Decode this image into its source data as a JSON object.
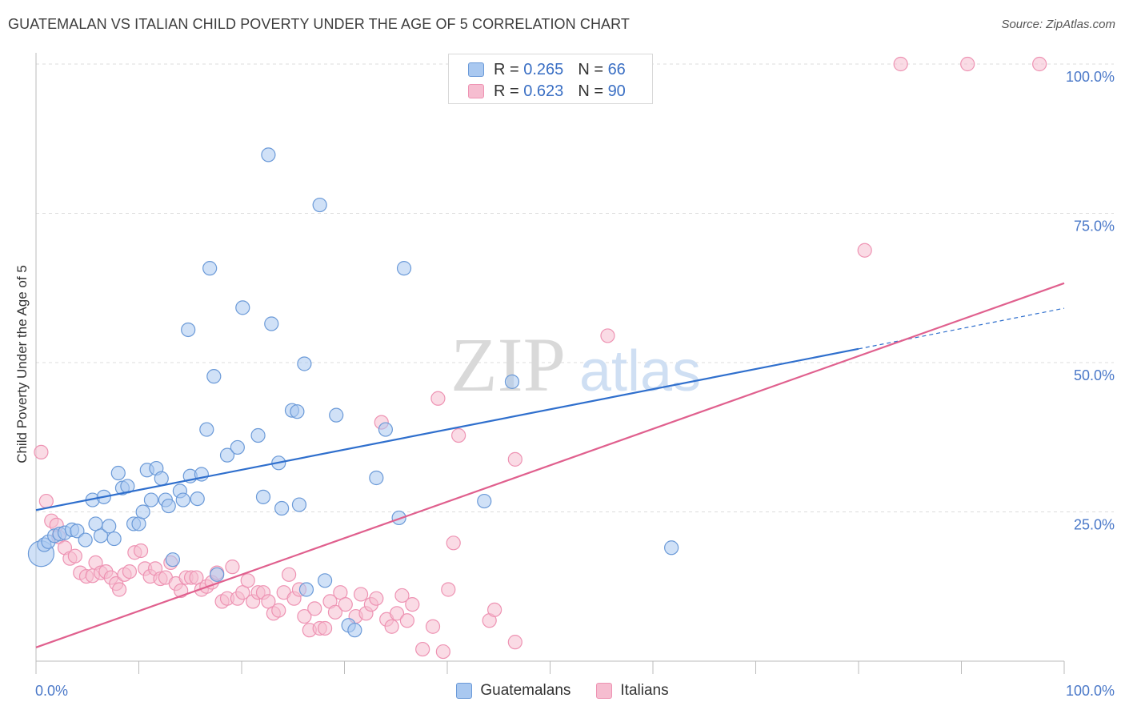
{
  "title": "GUATEMALAN VS ITALIAN CHILD POVERTY UNDER THE AGE OF 5 CORRELATION CHART",
  "source": "Source: ZipAtlas.com",
  "watermark": {
    "zip": "ZIP",
    "atlas": "atlas"
  },
  "legend_top": [
    {
      "r_label": "R =",
      "r_value": "0.265",
      "n_label": "N =",
      "n_value": "66"
    },
    {
      "r_label": "R =",
      "r_value": "0.623",
      "n_label": "N =",
      "n_value": "90"
    }
  ],
  "colors": {
    "blue_fill": "#a9c8f0",
    "blue_stroke": "#6b9ad8",
    "blue_line": "#2f6fcd",
    "pink_fill": "#f6bdd0",
    "pink_stroke": "#ee93b3",
    "pink_line": "#e0608e",
    "axis_label": "#4a78c8",
    "grid": "#dcdcdc"
  },
  "chart_data": {
    "type": "scatter",
    "title": "GUATEMALAN VS ITALIAN CHILD POVERTY UNDER THE AGE OF 5 CORRELATION CHART",
    "xlabel": "",
    "ylabel": "Child Poverty Under the Age of 5",
    "xlim": [
      0,
      100
    ],
    "ylim": [
      0,
      100
    ],
    "x_tick_labels": [
      "0.0%",
      "100.0%"
    ],
    "y_tick_labels": [
      "25.0%",
      "50.0%",
      "75.0%",
      "100.0%"
    ],
    "y_ticks": [
      25,
      50,
      75,
      100
    ],
    "grid": true,
    "legend_position": "top-center",
    "series": [
      {
        "name": "Guatemalans",
        "r": 0.265,
        "n": 66,
        "trend": {
          "x0": 0,
          "y0": 25.3,
          "x1": 80,
          "y1": 52.3,
          "x_dash_end": 100,
          "y_dash_end": 59.1
        },
        "points": [
          [
            0.5,
            18
          ],
          [
            0.8,
            19.5
          ],
          [
            1.2,
            20
          ],
          [
            1.8,
            21
          ],
          [
            2.3,
            21.3
          ],
          [
            2.8,
            21.5
          ],
          [
            3.5,
            22
          ],
          [
            4.0,
            21.8
          ],
          [
            4.8,
            20.3
          ],
          [
            5.5,
            27
          ],
          [
            5.8,
            23
          ],
          [
            6.3,
            21
          ],
          [
            6.6,
            27.5
          ],
          [
            7.1,
            22.6
          ],
          [
            7.6,
            20.5
          ],
          [
            8.0,
            31.5
          ],
          [
            8.4,
            29
          ],
          [
            8.9,
            29.3
          ],
          [
            9.5,
            23
          ],
          [
            10.0,
            23
          ],
          [
            10.4,
            25
          ],
          [
            10.8,
            32
          ],
          [
            11.2,
            27
          ],
          [
            11.7,
            32.3
          ],
          [
            12.2,
            30.6
          ],
          [
            12.6,
            27
          ],
          [
            12.9,
            26
          ],
          [
            13.3,
            17
          ],
          [
            14.0,
            28.5
          ],
          [
            14.3,
            27
          ],
          [
            14.8,
            55.5
          ],
          [
            15.0,
            31
          ],
          [
            15.7,
            27.2
          ],
          [
            16.1,
            31.3
          ],
          [
            16.6,
            38.8
          ],
          [
            16.9,
            65.8
          ],
          [
            17.3,
            47.7
          ],
          [
            17.6,
            14.5
          ],
          [
            18.6,
            34.5
          ],
          [
            19.6,
            35.8
          ],
          [
            20.1,
            59.2
          ],
          [
            21.6,
            37.8
          ],
          [
            22.1,
            27.5
          ],
          [
            22.6,
            84.8
          ],
          [
            22.9,
            56.5
          ],
          [
            23.6,
            33.2
          ],
          [
            23.9,
            25.6
          ],
          [
            24.9,
            42
          ],
          [
            25.4,
            41.8
          ],
          [
            25.6,
            26.2
          ],
          [
            26.1,
            49.8
          ],
          [
            26.3,
            12
          ],
          [
            27.6,
            76.4
          ],
          [
            28.1,
            13.5
          ],
          [
            29.2,
            41.2
          ],
          [
            30.4,
            6
          ],
          [
            31.0,
            5.2
          ],
          [
            33.1,
            30.7
          ],
          [
            34.0,
            38.8
          ],
          [
            35.3,
            24
          ],
          [
            35.8,
            65.8
          ],
          [
            43.6,
            26.8
          ],
          [
            46.3,
            46.8
          ],
          [
            61.8,
            19
          ]
        ]
      },
      {
        "name": "Italians",
        "r": 0.623,
        "n": 90,
        "trend": {
          "x0": 0,
          "y0": 2.3,
          "x1": 100,
          "y1": 63.3
        },
        "points": [
          [
            0.5,
            35
          ],
          [
            1.0,
            26.8
          ],
          [
            1.5,
            23.5
          ],
          [
            2.0,
            22.8
          ],
          [
            2.2,
            20.8
          ],
          [
            2.8,
            19
          ],
          [
            3.3,
            17.2
          ],
          [
            3.8,
            17.6
          ],
          [
            4.3,
            14.8
          ],
          [
            4.9,
            14.2
          ],
          [
            5.5,
            14.3
          ],
          [
            5.8,
            16.5
          ],
          [
            6.3,
            14.8
          ],
          [
            6.8,
            15
          ],
          [
            7.3,
            14
          ],
          [
            7.8,
            13
          ],
          [
            8.1,
            12
          ],
          [
            8.6,
            14.5
          ],
          [
            9.1,
            15
          ],
          [
            9.6,
            18.2
          ],
          [
            10.2,
            18.5
          ],
          [
            10.6,
            15.5
          ],
          [
            11.1,
            14.2
          ],
          [
            11.6,
            15.5
          ],
          [
            12.1,
            13.8
          ],
          [
            12.6,
            14
          ],
          [
            13.1,
            16.5
          ],
          [
            13.6,
            13
          ],
          [
            14.1,
            11.8
          ],
          [
            14.6,
            14
          ],
          [
            15.1,
            14
          ],
          [
            15.6,
            14
          ],
          [
            16.1,
            12
          ],
          [
            16.6,
            12.5
          ],
          [
            17.1,
            13.2
          ],
          [
            17.6,
            14.8
          ],
          [
            18.1,
            10
          ],
          [
            18.6,
            10.5
          ],
          [
            19.1,
            15.8
          ],
          [
            19.6,
            10.5
          ],
          [
            20.1,
            11.5
          ],
          [
            20.6,
            13.5
          ],
          [
            21.1,
            10
          ],
          [
            21.6,
            11.5
          ],
          [
            22.1,
            11.5
          ],
          [
            22.6,
            10
          ],
          [
            23.1,
            8
          ],
          [
            23.6,
            8.5
          ],
          [
            24.1,
            11.5
          ],
          [
            24.6,
            14.5
          ],
          [
            25.1,
            10.5
          ],
          [
            25.6,
            12
          ],
          [
            26.1,
            7.5
          ],
          [
            26.6,
            5.2
          ],
          [
            27.1,
            8.8
          ],
          [
            27.6,
            5.5
          ],
          [
            28.1,
            5.5
          ],
          [
            28.6,
            10
          ],
          [
            29.1,
            8.2
          ],
          [
            29.6,
            11.5
          ],
          [
            30.1,
            9.5
          ],
          [
            31.1,
            7.5
          ],
          [
            31.6,
            11.2
          ],
          [
            32.1,
            8
          ],
          [
            32.6,
            9.5
          ],
          [
            33.1,
            10.5
          ],
          [
            33.6,
            40
          ],
          [
            34.1,
            7
          ],
          [
            34.6,
            5.8
          ],
          [
            35.1,
            8
          ],
          [
            35.6,
            11
          ],
          [
            36.1,
            6.8
          ],
          [
            36.6,
            9.5
          ],
          [
            37.6,
            2
          ],
          [
            38.6,
            5.8
          ],
          [
            39.1,
            44
          ],
          [
            39.6,
            1.6
          ],
          [
            40.1,
            12
          ],
          [
            40.6,
            19.8
          ],
          [
            41.1,
            37.8
          ],
          [
            44.1,
            6.8
          ],
          [
            44.6,
            8.6
          ],
          [
            46.6,
            33.8
          ],
          [
            46.6,
            3.2
          ],
          [
            55.6,
            54.5
          ],
          [
            80.6,
            68.8
          ],
          [
            84.1,
            100
          ],
          [
            90.6,
            100
          ],
          [
            97.6,
            100
          ]
        ]
      }
    ]
  },
  "bottom_legend": [
    "Guatemalans",
    "Italians"
  ]
}
